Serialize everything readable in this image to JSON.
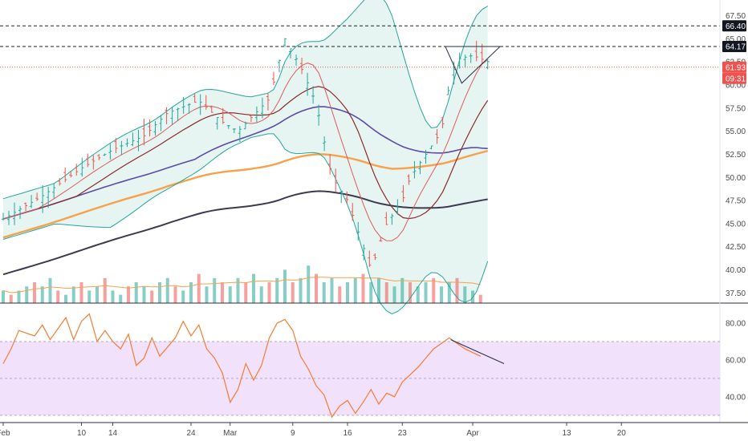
{
  "colors": {
    "up": "#26a69a",
    "down": "#ef5350",
    "bb": "#26a69a",
    "bb_fill": "#e6f4f2",
    "ma_short": "#e05a5a",
    "ma_long": "#8b2a2a",
    "ma_mid": "#5b4ba8",
    "ma_orange": "#f7a14a",
    "ma_dark": "#3e3a4e",
    "rsi_line": "#f57c33",
    "rsi_band": "#f1e1fb",
    "trend": "#2a2f45",
    "last_price": "#ef5350"
  },
  "chart_data": [
    {
      "type": "candlestick",
      "name": "price",
      "ylim": [
        36.4,
        69.2
      ],
      "yticks": [
        "37.50",
        "40.00",
        "42.50",
        "45.00",
        "47.50",
        "50.00",
        "52.50",
        "55.00",
        "57.50",
        "60.00",
        "62.50",
        "65.00",
        "67.50"
      ],
      "xticks": [
        {
          "label": "Feb",
          "day": 0
        },
        {
          "label": "10",
          "day": 10
        },
        {
          "label": "14",
          "day": 14
        },
        {
          "label": "24",
          "day": 24
        },
        {
          "label": "Mar",
          "day": 29
        },
        {
          "label": "9",
          "day": 37
        },
        {
          "label": "16",
          "day": 44
        },
        {
          "label": "23",
          "day": 51
        },
        {
          "label": "Apr",
          "day": 60
        },
        {
          "label": "13",
          "day": 72
        },
        {
          "label": "20",
          "day": 79
        }
      ],
      "xlim": [
        0,
        92
      ],
      "close_path": [
        [
          0,
          45.5
        ],
        [
          5,
          48.0
        ],
        [
          10,
          51.0
        ],
        [
          14,
          53.0
        ],
        [
          18,
          54.5
        ],
        [
          21,
          57.0
        ],
        [
          25,
          58.3
        ],
        [
          28,
          56.0
        ],
        [
          30,
          55.0
        ],
        [
          34,
          58.5
        ],
        [
          36,
          65.0
        ],
        [
          38,
          62.0
        ],
        [
          40,
          58.0
        ],
        [
          42,
          50.0
        ],
        [
          44,
          47.5
        ],
        [
          46,
          42.5
        ],
        [
          47,
          40.0
        ],
        [
          49,
          45.0
        ],
        [
          51,
          47.5
        ],
        [
          52,
          50.0
        ],
        [
          54,
          52.5
        ],
        [
          56,
          55.0
        ],
        [
          57,
          60.0
        ],
        [
          58,
          62.8
        ],
        [
          59,
          63.0
        ],
        [
          60,
          63.2
        ],
        [
          62,
          62.5
        ]
      ],
      "volume": [
        3,
        2,
        3,
        4,
        5,
        4,
        6,
        3,
        2,
        4,
        5,
        3,
        4,
        6,
        3,
        2,
        4,
        5,
        4,
        3,
        5,
        6,
        4,
        3,
        5,
        7,
        4,
        6,
        5,
        4,
        6,
        5,
        7,
        4,
        5,
        6,
        8,
        5,
        6,
        9,
        7,
        5,
        6,
        4,
        5,
        6,
        7,
        5,
        6,
        5,
        4,
        6,
        5,
        4,
        5,
        6,
        4,
        5,
        6,
        4,
        3,
        2
      ],
      "horizontal_lines": [
        {
          "label": "66.40",
          "value": 66.4,
          "style": "dashed",
          "color": "#222222"
        },
        {
          "label": "64.17",
          "value": 64.17,
          "style": "dashed",
          "color": "#222222"
        },
        {
          "label": "61.93",
          "value": 61.93,
          "style": "dotted",
          "color": "#ef5350"
        }
      ],
      "countdown": "09:31"
    },
    {
      "type": "line",
      "name": "rsi",
      "ylim": [
        26,
        90
      ],
      "yticks": [
        "40.00",
        "60.00",
        "80.00"
      ],
      "band": [
        30,
        70
      ],
      "points": [
        [
          0,
          58
        ],
        [
          1,
          66
        ],
        [
          2,
          76
        ],
        [
          4,
          73
        ],
        [
          5,
          79
        ],
        [
          6,
          71
        ],
        [
          8,
          83
        ],
        [
          9,
          71
        ],
        [
          10,
          81
        ],
        [
          11,
          85
        ],
        [
          12,
          70
        ],
        [
          13,
          76
        ],
        [
          14,
          70
        ],
        [
          15,
          66
        ],
        [
          16,
          74
        ],
        [
          17,
          57
        ],
        [
          18,
          61
        ],
        [
          19,
          72
        ],
        [
          20,
          62
        ],
        [
          21,
          67
        ],
        [
          22,
          72
        ],
        [
          23,
          81
        ],
        [
          24,
          73
        ],
        [
          25,
          79
        ],
        [
          26,
          66
        ],
        [
          27,
          61
        ],
        [
          28,
          53
        ],
        [
          29,
          37
        ],
        [
          30,
          44
        ],
        [
          31,
          58
        ],
        [
          32,
          49
        ],
        [
          33,
          57
        ],
        [
          34,
          72
        ],
        [
          35,
          80
        ],
        [
          36,
          82
        ],
        [
          37,
          76
        ],
        [
          38,
          62
        ],
        [
          39,
          55
        ],
        [
          40,
          46
        ],
        [
          41,
          41
        ],
        [
          42,
          29
        ],
        [
          43,
          35
        ],
        [
          44,
          38
        ],
        [
          45,
          31
        ],
        [
          46,
          37
        ],
        [
          47,
          44
        ],
        [
          48,
          36
        ],
        [
          49,
          42
        ],
        [
          50,
          40
        ],
        [
          51,
          48
        ],
        [
          52,
          52
        ],
        [
          53,
          56
        ],
        [
          54,
          61
        ],
        [
          55,
          66
        ],
        [
          56,
          69
        ],
        [
          57,
          72
        ],
        [
          58,
          69
        ],
        [
          59,
          66
        ],
        [
          60,
          64
        ],
        [
          61,
          62
        ]
      ]
    }
  ]
}
